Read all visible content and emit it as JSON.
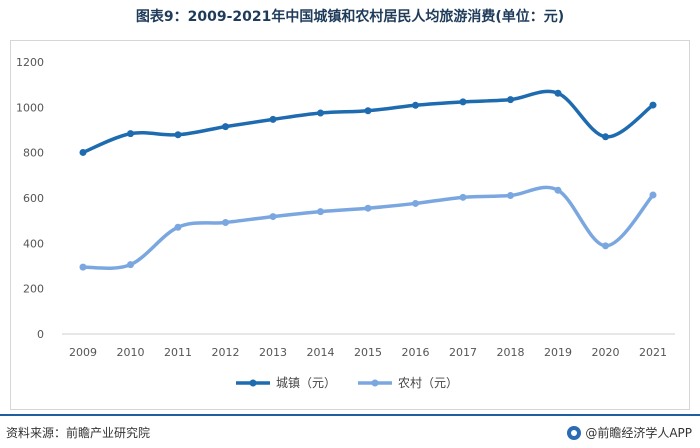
{
  "title": "图表9：2009-2021年中国城镇和农村居民人均旅游消费(单位：元)",
  "chart_data": {
    "type": "line",
    "categories": [
      "2009",
      "2010",
      "2011",
      "2012",
      "2013",
      "2014",
      "2015",
      "2016",
      "2017",
      "2018",
      "2019",
      "2020",
      "2021"
    ],
    "series": [
      {
        "name": "城镇（元）",
        "color": "#1f6bb0",
        "values": [
          801,
          884,
          879,
          915,
          947,
          975,
          985,
          1009,
          1024,
          1034,
          1062,
          870,
          1010
        ]
      },
      {
        "name": "农村（元）",
        "color": "#7ba7e1",
        "values": [
          295,
          306,
          471,
          492,
          518,
          540,
          555,
          576,
          603,
          611,
          634,
          389,
          613
        ]
      }
    ],
    "ylim": [
      0,
      1200
    ],
    "yticks": [
      0,
      200,
      400,
      600,
      800,
      1000,
      1200
    ],
    "grid": false,
    "legend_position": "bottom"
  },
  "footer": {
    "source": "资料来源：前瞻产业研究院",
    "brand": "@前瞻经济学人APP",
    "brand_icon": "qianzhan-logo-icon"
  }
}
